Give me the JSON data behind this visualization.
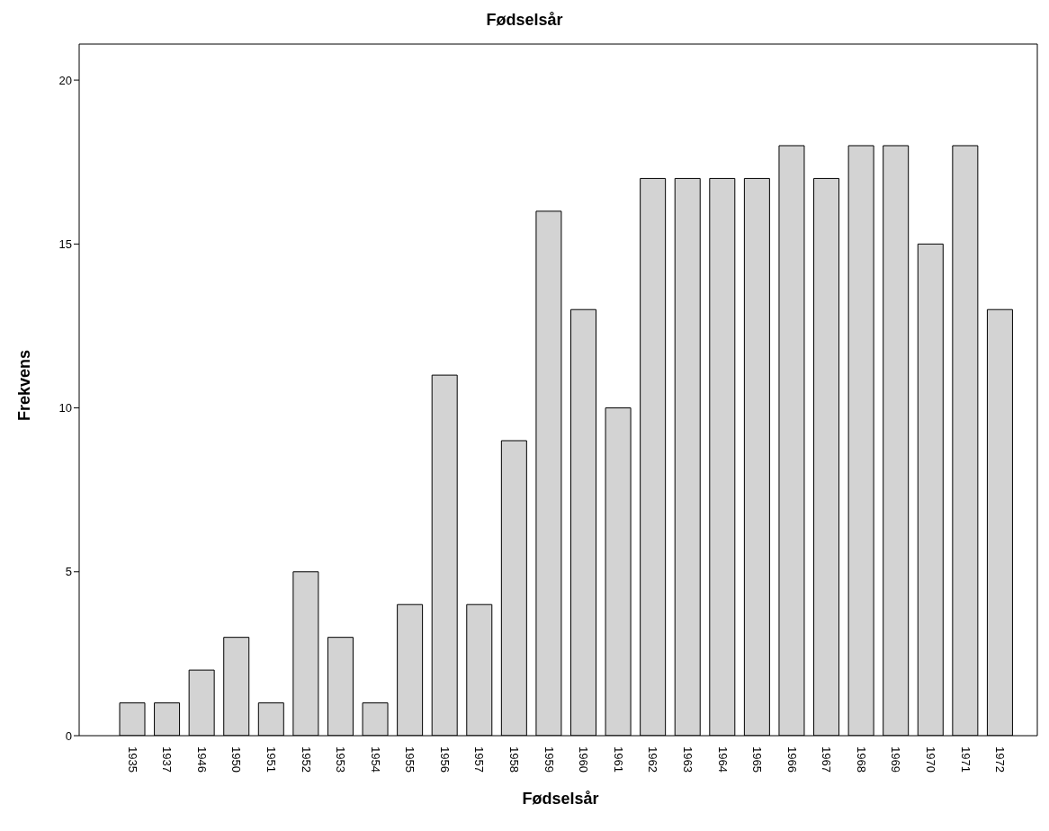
{
  "chart_data": {
    "type": "bar",
    "title": "Fødselsår",
    "xlabel": "Fødselsår",
    "ylabel": "Frekvens",
    "categories": [
      "1935",
      "1937",
      "1946",
      "1950",
      "1951",
      "1952",
      "1953",
      "1954",
      "1955",
      "1956",
      "1957",
      "1958",
      "1959",
      "1960",
      "1961",
      "1962",
      "1963",
      "1964",
      "1965",
      "1966",
      "1967",
      "1968",
      "1969",
      "1970",
      "1971",
      "1972"
    ],
    "values": [
      1,
      1,
      2,
      3,
      1,
      5,
      3,
      1,
      4,
      11,
      4,
      9,
      16,
      13,
      10,
      17,
      17,
      17,
      17,
      18,
      17,
      18,
      18,
      15,
      18,
      13
    ],
    "color": "#d3d3d3",
    "ylim": [
      0,
      21.1
    ],
    "yticks": [
      0,
      5,
      10,
      15,
      20
    ],
    "grid": false
  }
}
